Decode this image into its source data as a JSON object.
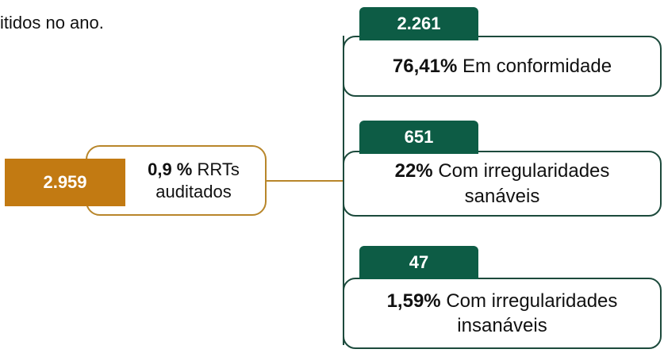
{
  "header_text": "itidos no ano.",
  "root": {
    "count": "2.959",
    "percent": "0,9 %",
    "label": "RRTs auditados"
  },
  "nodes": [
    {
      "count": "2.261",
      "percent": "76,41%",
      "label": "Em conformidade"
    },
    {
      "count": "651",
      "percent": "22%",
      "label": "Com irregularidades sanáveis"
    },
    {
      "count": "47",
      "percent": "1,59%",
      "label": "Com irregularidades insanáveis"
    }
  ]
}
